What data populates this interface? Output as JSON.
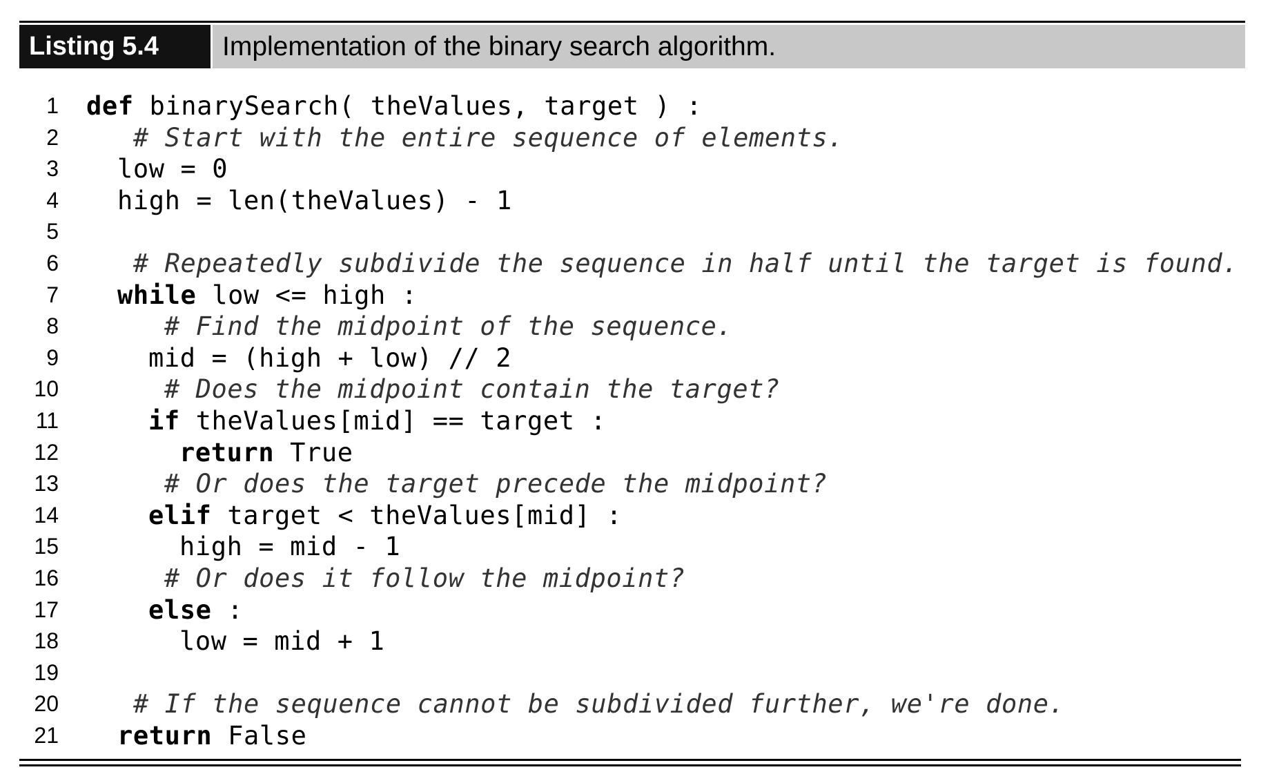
{
  "listing": {
    "label": "Listing 5.4",
    "caption": "Implementation of the binary search algorithm."
  },
  "code_lines": [
    {
      "n": "1",
      "indent": 0,
      "parts": [
        {
          "t": "def",
          "s": "kw"
        },
        {
          "t": " binarySearch( theValues, target ) :",
          "s": ""
        }
      ]
    },
    {
      "n": "2",
      "indent": 1,
      "parts": [
        {
          "t": " # Start with the entire sequence of elements.",
          "s": "cm"
        }
      ]
    },
    {
      "n": "3",
      "indent": 1,
      "parts": [
        {
          "t": "low = 0",
          "s": ""
        }
      ]
    },
    {
      "n": "4",
      "indent": 1,
      "parts": [
        {
          "t": "high = len(theValues) - 1",
          "s": ""
        }
      ]
    },
    {
      "n": "5",
      "indent": 0,
      "parts": []
    },
    {
      "n": "6",
      "indent": 1,
      "parts": [
        {
          "t": " # Repeatedly subdivide the sequence in half until the target is found.",
          "s": "cm"
        }
      ]
    },
    {
      "n": "7",
      "indent": 1,
      "parts": [
        {
          "t": "while",
          "s": "kw"
        },
        {
          "t": " low <= high :",
          "s": ""
        }
      ]
    },
    {
      "n": "8",
      "indent": 2,
      "parts": [
        {
          "t": " # Find the midpoint of the sequence.",
          "s": "cm"
        }
      ]
    },
    {
      "n": "9",
      "indent": 2,
      "parts": [
        {
          "t": "mid = (high + low) // 2",
          "s": ""
        }
      ]
    },
    {
      "n": "10",
      "indent": 2,
      "parts": [
        {
          "t": " # Does the midpoint contain the target?",
          "s": "cm"
        }
      ]
    },
    {
      "n": "11",
      "indent": 2,
      "parts": [
        {
          "t": "if",
          "s": "kw"
        },
        {
          "t": " theValues[mid] == target :",
          "s": ""
        }
      ]
    },
    {
      "n": "12",
      "indent": 3,
      "parts": [
        {
          "t": "return",
          "s": "kw"
        },
        {
          "t": " True",
          "s": ""
        }
      ]
    },
    {
      "n": "13",
      "indent": 2,
      "parts": [
        {
          "t": " # Or does the target precede the midpoint?",
          "s": "cm"
        }
      ]
    },
    {
      "n": "14",
      "indent": 2,
      "parts": [
        {
          "t": "elif",
          "s": "kw"
        },
        {
          "t": " target < theValues[mid] :",
          "s": ""
        }
      ]
    },
    {
      "n": "15",
      "indent": 3,
      "parts": [
        {
          "t": "high = mid - 1",
          "s": ""
        }
      ]
    },
    {
      "n": "16",
      "indent": 2,
      "parts": [
        {
          "t": " # Or does it follow the midpoint?",
          "s": "cm"
        }
      ]
    },
    {
      "n": "17",
      "indent": 2,
      "parts": [
        {
          "t": "else",
          "s": "kw"
        },
        {
          "t": " :",
          "s": ""
        }
      ]
    },
    {
      "n": "18",
      "indent": 3,
      "parts": [
        {
          "t": "low = mid + 1",
          "s": ""
        }
      ]
    },
    {
      "n": "19",
      "indent": 0,
      "parts": []
    },
    {
      "n": "20",
      "indent": 1,
      "parts": [
        {
          "t": " # If the sequence cannot be subdivided further, we're done.",
          "s": "cm"
        }
      ]
    },
    {
      "n": "21",
      "indent": 1,
      "parts": [
        {
          "t": "return",
          "s": "kw"
        },
        {
          "t": " False",
          "s": ""
        }
      ]
    }
  ]
}
